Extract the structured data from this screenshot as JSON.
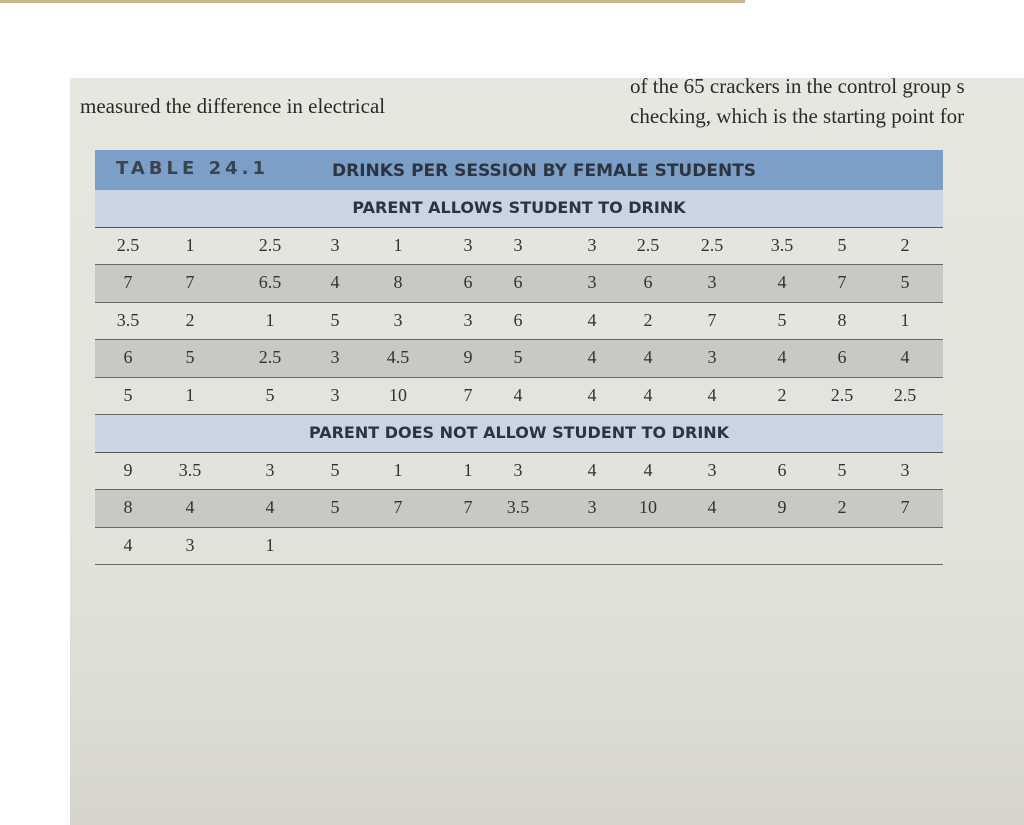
{
  "page_text": {
    "left_line": "measured the difference in electrical",
    "right_line_1": "of the 65 crackers in the control group s",
    "right_line_2": "checking, which is the starting point for"
  },
  "table": {
    "label": "TABLE 24.1",
    "title": "DRINKS PER SESSION BY FEMALE STUDENTS",
    "sections": [
      {
        "heading": "PARENT ALLOWS STUDENT TO DRINK",
        "rows": [
          [
            "2.5",
            "1",
            "2.5",
            "3",
            "1",
            "3",
            "3",
            "3",
            "2.5",
            "2.5",
            "3.5",
            "5",
            "2"
          ],
          [
            "7",
            "7",
            "6.5",
            "4",
            "8",
            "6",
            "6",
            "3",
            "6",
            "3",
            "4",
            "7",
            "5"
          ],
          [
            "3.5",
            "2",
            "1",
            "5",
            "3",
            "3",
            "6",
            "4",
            "2",
            "7",
            "5",
            "8",
            "1"
          ],
          [
            "6",
            "5",
            "2.5",
            "3",
            "4.5",
            "9",
            "5",
            "4",
            "4",
            "3",
            "4",
            "6",
            "4"
          ],
          [
            "5",
            "1",
            "5",
            "3",
            "10",
            "7",
            "4",
            "4",
            "4",
            "4",
            "2",
            "2.5",
            "2.5"
          ]
        ]
      },
      {
        "heading": "PARENT DOES NOT ALLOW STUDENT TO DRINK",
        "rows": [
          [
            "9",
            "3.5",
            "3",
            "5",
            "1",
            "1",
            "3",
            "4",
            "4",
            "3",
            "6",
            "5",
            "3"
          ],
          [
            "8",
            "4",
            "4",
            "5",
            "7",
            "7",
            "3.5",
            "3",
            "10",
            "4",
            "9",
            "2",
            "7"
          ],
          [
            "4",
            "3",
            "1"
          ]
        ]
      }
    ]
  }
}
